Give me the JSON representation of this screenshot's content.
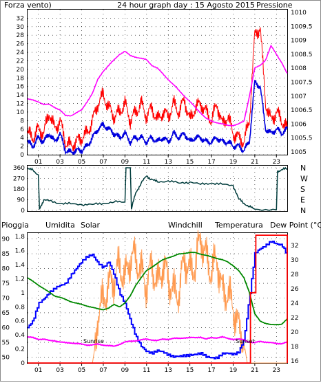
{
  "colors": {
    "wind": "#ff0000",
    "gust": "#ff0000",
    "wind_avg": "#0000dd",
    "pressure": "#ff00ff",
    "direction": "#003c3c",
    "rain": "#ff0000",
    "humidity": "#0000ff",
    "solar": "#ff9a50",
    "windchill": "#006666",
    "temperature": "#008800",
    "dewpoint": "#ff00ff",
    "blue_label": "#1a1aa0",
    "solar_label": "#b07a1a",
    "windchill_label": "#006060",
    "temp_label": "#008000",
    "dew_label": "#cc0000"
  },
  "header": {
    "left": "Forza vento)",
    "center": "24 hour graph day : 15 Agosto 2015",
    "right": "Pressione"
  },
  "bottom_legend": {
    "rain": "Pioggia",
    "humidity": "Umidita",
    "solar": "Solar",
    "windchill": "Windchill",
    "temperature": "Temperatura",
    "dewpoint": "Dew Point (°C)"
  },
  "annotations": {
    "sunrise": "Sunrise",
    "sunset": "Sunset"
  },
  "chart_data": [
    {
      "type": "line",
      "title": "24 hour graph day : 15 Agosto 2015",
      "x_ticks": [
        "01",
        "03",
        "05",
        "07",
        "09",
        "11",
        "13",
        "15",
        "17",
        "19",
        "21",
        "23"
      ],
      "xlim": [
        0,
        24
      ],
      "y_left": {
        "label": "Forza vento)",
        "ticks": [
          0,
          2,
          4,
          6,
          8,
          10,
          12,
          14,
          16,
          18,
          20,
          22,
          24,
          26,
          28,
          30,
          32
        ],
        "lim": [
          0,
          34
        ]
      },
      "y_right": {
        "label": "Pressione",
        "ticks": [
          1005,
          1005.5,
          1006,
          1006.5,
          1007,
          1007.5,
          1008,
          1008.5,
          1009,
          1009.5,
          1010
        ],
        "lim": [
          1004.9,
          1010.1
        ]
      },
      "series": [
        {
          "x": [
            0,
            0.5,
            1,
            1.5,
            2,
            2.5,
            3,
            3.5,
            4,
            4.5,
            5,
            5.5,
            6,
            6.5,
            7,
            7.5,
            8,
            8.5,
            9,
            9.5,
            10,
            10.5,
            11,
            11.5,
            12,
            12.5,
            13,
            13.5,
            14,
            14.5,
            15,
            15.5,
            16,
            16.5,
            17,
            17.5,
            18,
            18.5,
            19,
            19.5,
            20,
            20.5,
            21,
            21.5,
            22,
            22.5,
            23,
            23.5,
            24
          ],
          "values": [
            5,
            4,
            6,
            5,
            10,
            6,
            8,
            3,
            2,
            3,
            4,
            5,
            8,
            12,
            14,
            11,
            9,
            10,
            12,
            8,
            10,
            12,
            9,
            11,
            8,
            10,
            9,
            12,
            10,
            13,
            8,
            11,
            12,
            10,
            8,
            12,
            7,
            9,
            5,
            4,
            3,
            8,
            28,
            30,
            12,
            8,
            10,
            8,
            6
          ]
        },
        {
          "x": [
            0,
            0.5,
            1,
            1.5,
            2,
            2.5,
            3,
            3.5,
            4,
            4.5,
            5,
            5.5,
            6,
            6.5,
            7,
            7.5,
            8,
            8.5,
            9,
            9.5,
            10,
            10.5,
            11,
            11.5,
            12,
            12.5,
            13,
            13.5,
            14,
            14.5,
            15,
            15.5,
            16,
            16.5,
            17,
            17.5,
            18,
            18.5,
            19,
            19.5,
            20,
            20.5,
            21,
            21.5,
            22,
            22.5,
            23,
            23.5,
            24
          ],
          "values": [
            3,
            2,
            4,
            3,
            5,
            3,
            5,
            1,
            0.5,
            1,
            1,
            2,
            4,
            6,
            7,
            6,
            5,
            4,
            5,
            3,
            4,
            4,
            3,
            4,
            3,
            4,
            3,
            5,
            4,
            5,
            3,
            4,
            4,
            3,
            3,
            4,
            3,
            3,
            2,
            2,
            1,
            3,
            17,
            16,
            6,
            5,
            6,
            5,
            6
          ]
        },
        {
          "x": [
            0,
            0.5,
            1,
            1.5,
            2,
            2.5,
            3,
            3.5,
            4,
            4.5,
            5,
            5.5,
            6,
            6.5,
            7,
            7.5,
            8,
            8.5,
            9,
            9.5,
            10,
            10.5,
            11,
            11.5,
            12,
            12.5,
            13,
            13.5,
            14,
            14.5,
            15,
            15.5,
            16,
            16.5,
            17,
            17.5,
            18,
            18.5,
            19,
            19.5,
            20,
            20.5,
            21,
            21.5,
            22,
            22.5,
            23,
            23.5,
            24
          ],
          "values": [
            1006.9,
            1006.85,
            1006.8,
            1006.7,
            1006.7,
            1006.6,
            1006.5,
            1006.3,
            1006.3,
            1006.4,
            1006.5,
            1006.8,
            1007.1,
            1007.6,
            1007.9,
            1008.1,
            1008.3,
            1008.5,
            1008.6,
            1008.45,
            1008.4,
            1008.35,
            1008.3,
            1008.1,
            1008,
            1007.8,
            1007.6,
            1007.4,
            1007.2,
            1007.0,
            1006.8,
            1006.6,
            1006.4,
            1006.2,
            1006.1,
            1006.05,
            1006,
            1005.95,
            1005.95,
            1006,
            1006.1,
            1007,
            1008,
            1008.1,
            1008.3,
            1008.8,
            1008.5,
            1008.2,
            1007.8
          ]
        }
      ]
    },
    {
      "type": "line",
      "x_ticks": [
        "01",
        "03",
        "05",
        "07",
        "09",
        "11",
        "13",
        "15",
        "17",
        "19",
        "21",
        "23"
      ],
      "y_left": {
        "ticks": [
          0,
          90,
          180,
          270,
          360
        ],
        "lim": [
          0,
          360
        ]
      },
      "y_right": {
        "ticks": [
          "N",
          "W",
          "S",
          "E",
          "N"
        ]
      },
      "series": [
        {
          "x": [
            0,
            0.5,
            1,
            1.1,
            1.5,
            2,
            3,
            4,
            5,
            6,
            7,
            8,
            9,
            9.1,
            9.5,
            9.6,
            10,
            10.5,
            11,
            11.5,
            12,
            13,
            14,
            15,
            16,
            17,
            18,
            19,
            19.5,
            20,
            20.5,
            21,
            23,
            23.1,
            23.5,
            24
          ],
          "values": [
            350,
            340,
            300,
            10,
            90,
            80,
            60,
            55,
            50,
            50,
            60,
            70,
            70,
            360,
            360,
            10,
            150,
            230,
            290,
            260,
            240,
            250,
            230,
            240,
            220,
            230,
            220,
            210,
            100,
            60,
            30,
            10,
            5,
            330,
            345,
            350
          ]
        }
      ]
    },
    {
      "type": "line",
      "x_ticks": [
        "01",
        "03",
        "05",
        "07",
        "09",
        "11",
        "13",
        "15",
        "17",
        "19",
        "21",
        "23"
      ],
      "xlim": [
        0,
        24
      ],
      "y_left": {
        "ticks_outer": [
          50,
          55,
          60,
          65,
          70,
          75,
          80,
          85,
          90
        ],
        "ticks_inner": [
          0,
          0.2,
          0.4,
          0.6,
          0.8,
          1,
          1.2,
          1.4,
          1.6,
          1.8
        ],
        "lim_outer": [
          48,
          92
        ],
        "lim_inner": [
          0,
          1.85
        ]
      },
      "y_right": {
        "label": "Dew Point (°C)",
        "ticks": [
          16,
          18,
          20,
          22,
          24,
          26,
          28,
          30,
          32
        ],
        "lim": [
          15.7,
          33.7
        ]
      },
      "series": [
        {
          "name": "Umidita",
          "x": [
            0,
            0.5,
            1,
            1.5,
            2,
            2.5,
            3,
            3.5,
            4,
            4.5,
            5,
            5.5,
            6,
            6.5,
            7,
            7.5,
            8,
            8.5,
            9,
            9.5,
            10,
            10.5,
            11,
            11.5,
            12,
            12.5,
            13,
            13.5,
            14,
            14.5,
            15,
            15.5,
            16,
            16.5,
            17,
            17.5,
            18,
            18.5,
            19,
            19.5,
            20,
            20.5,
            21,
            21.5,
            22,
            22.5,
            23,
            23.5,
            24
          ],
          "values": [
            60,
            62,
            68,
            70,
            72,
            73,
            74,
            75,
            78,
            80,
            82,
            84,
            85,
            82,
            80,
            82,
            78,
            72,
            68,
            62,
            57,
            54,
            52,
            51,
            52,
            52,
            51,
            50,
            50,
            50.5,
            51,
            51,
            51,
            50,
            50,
            50,
            51,
            51,
            51,
            52,
            56,
            70,
            85,
            87,
            88,
            89,
            88,
            88,
            85
          ]
        },
        {
          "name": "Solar",
          "x": [
            0,
            6,
            6.3,
            6.5,
            7,
            7.5,
            8,
            8.5,
            9,
            9.5,
            10,
            10.5,
            11,
            11.5,
            12,
            12.5,
            13,
            13.5,
            14,
            14.5,
            15,
            15.5,
            16,
            16.5,
            17,
            17.5,
            18,
            18.5,
            19,
            19.5,
            20,
            20.3,
            24
          ],
          "values": [
            0,
            0,
            0.3,
            0.7,
            0.9,
            1.1,
            1.2,
            1.4,
            1.2,
            1.5,
            1.5,
            1.3,
            1.1,
            1.4,
            1.1,
            1.4,
            1.2,
            1.0,
            1.0,
            1.5,
            1.3,
            1.4,
            1.8,
            1.5,
            1.3,
            1.5,
            1.0,
            1.0,
            0.8,
            0.5,
            0.3,
            0,
            0
          ]
        },
        {
          "name": "Temperatura",
          "x": [
            0,
            0.5,
            1,
            1.5,
            2,
            2.5,
            3,
            3.5,
            4,
            4.5,
            5,
            5.5,
            6,
            6.5,
            7,
            7.5,
            8,
            8.5,
            9,
            9.5,
            10,
            10.5,
            11,
            11.5,
            12,
            12.5,
            13,
            13.5,
            14,
            14.5,
            15,
            15.5,
            16,
            16.5,
            17,
            17.5,
            18,
            18.5,
            19,
            19.5,
            20,
            20.5,
            21,
            21.5,
            22,
            22.5,
            23,
            23.5,
            24
          ],
          "values": [
            27.5,
            27,
            26.5,
            26,
            25.5,
            25,
            24.8,
            24.5,
            24.2,
            24.0,
            23.8,
            23.6,
            23.4,
            23.2,
            23.1,
            23.3,
            23.8,
            23.5,
            24,
            25,
            26.5,
            27.5,
            28.5,
            29,
            29.5,
            30,
            30.3,
            30.5,
            30.8,
            30.9,
            31,
            31,
            30.8,
            30.6,
            30.4,
            30.2,
            30.0,
            29.7,
            29.2,
            28.5,
            27.5,
            25.5,
            22.5,
            21.5,
            21.2,
            21.0,
            21.0,
            21.1,
            21.8
          ]
        },
        {
          "name": "Dew Point (°C)",
          "x": [
            0,
            0.5,
            1,
            1.5,
            2,
            2.5,
            3,
            3.5,
            4,
            4.5,
            5,
            5.5,
            6,
            6.5,
            7,
            7.5,
            8,
            8.5,
            9,
            9.5,
            10,
            10.5,
            11,
            11.5,
            12,
            12.5,
            13,
            13.5,
            14,
            14.5,
            15,
            15.5,
            16,
            16.5,
            17,
            17.5,
            18,
            18.5,
            19,
            19.5,
            20,
            20.5,
            21,
            21.5,
            22,
            22.5,
            23,
            23.5,
            24
          ],
          "values": [
            19.3,
            19.2,
            19.0,
            19.0,
            18.8,
            18.8,
            18.6,
            18.5,
            18.5,
            18.4,
            18.3,
            18.2,
            18.2,
            18.3,
            18.2,
            18.1,
            18.0,
            18.3,
            18.6,
            18.7,
            18.8,
            18.9,
            19.0,
            18.9,
            18.8,
            19.0,
            19.0,
            19.1,
            19.1,
            19.2,
            19.2,
            19.2,
            19.3,
            19.0,
            19.2,
            19.2,
            19.3,
            19.1,
            19.0,
            19.0,
            18.9,
            18.6,
            18.5,
            18.7,
            18.6,
            18.5,
            18.4,
            18.4,
            18.6
          ]
        },
        {
          "name": "Pioggia",
          "x": [
            0,
            20.6,
            20.6,
            21.1,
            21.1,
            24,
            24,
            24.2
          ],
          "values": [
            0,
            0,
            1.0,
            1.0,
            1.82,
            1.82,
            0,
            0
          ]
        }
      ]
    }
  ]
}
